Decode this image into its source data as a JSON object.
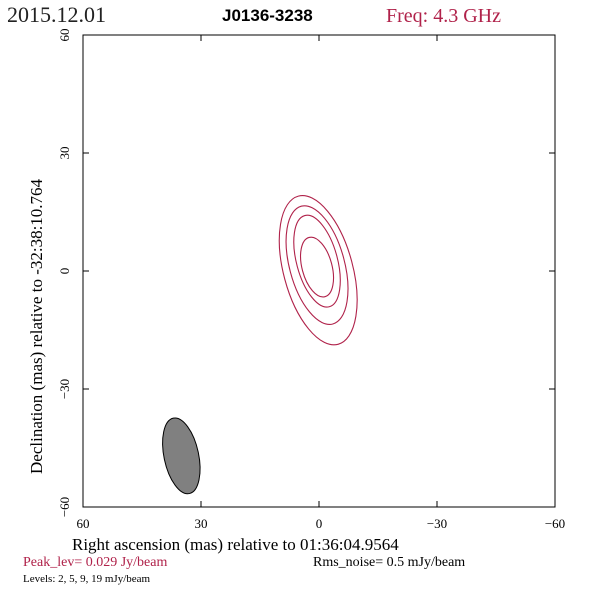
{
  "header": {
    "date": "2015.12.01",
    "source": "J0136-3238",
    "freq": "Freq: 4.3 GHz"
  },
  "footer": {
    "peak": "Peak_lev=  0.029 Jy/beam",
    "rms": "Rms_noise=   0.5 mJy/beam",
    "levels": "Levels:   2,    5,    9,   19 mJy/beam"
  },
  "colors": {
    "accent": "#b0224a",
    "axis": "#000000",
    "beam_fill": "#808080"
  },
  "chart_data": {
    "type": "contour",
    "xlabel": "Right ascension (mas) relative to 01:36:04.9564",
    "ylabel": "Declination (mas) relative to -32:38:10.764",
    "xlim": [
      60,
      -60
    ],
    "ylim": [
      -60,
      60
    ],
    "xticks": [
      60,
      30,
      0,
      -30,
      -60
    ],
    "yticks": [
      -60,
      -30,
      0,
      30,
      60
    ],
    "xtick_labels": [
      "60",
      "30",
      "0",
      "−30",
      "−60"
    ],
    "ytick_labels": [
      "−60",
      "−30",
      "0",
      "30",
      "60"
    ],
    "contours": [
      {
        "level": 2,
        "x": 0.2,
        "y": 0.2,
        "major": 19.5,
        "minor": 8.8,
        "pa": -15
      },
      {
        "level": 5,
        "x": 0.5,
        "y": 1.5,
        "major": 15.5,
        "minor": 7.0,
        "pa": -15
      },
      {
        "level": 9,
        "x": 0.5,
        "y": 2.5,
        "major": 12.0,
        "minor": 5.2,
        "pa": -15
      },
      {
        "level": 19,
        "x": 0.5,
        "y": 1.0,
        "major": 7.8,
        "minor": 3.8,
        "pa": -15
      }
    ],
    "beam": {
      "x": 35,
      "y": -47,
      "major": 9.8,
      "minor": 4.4,
      "pa": -12
    }
  }
}
